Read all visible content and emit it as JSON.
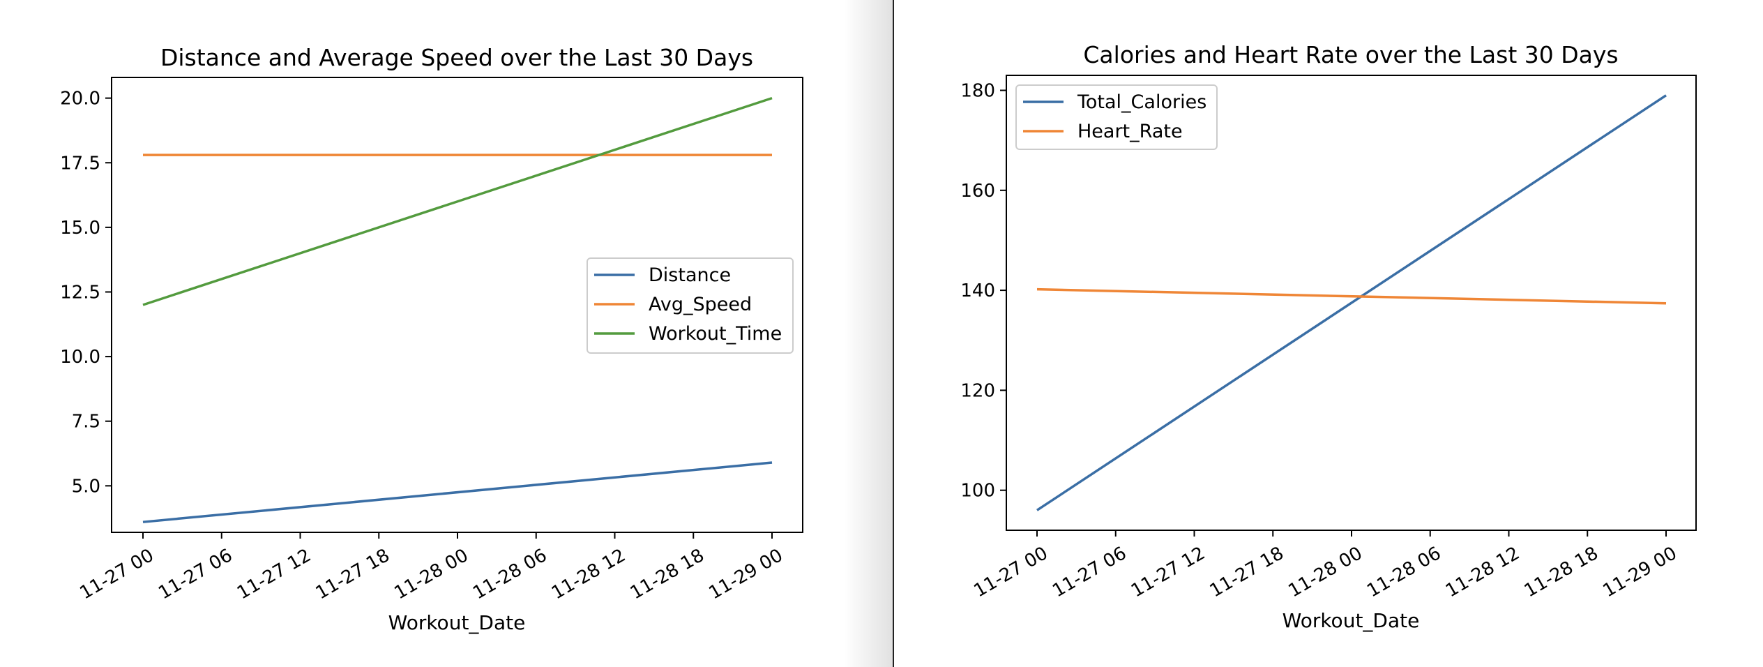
{
  "chart_data": [
    {
      "type": "line",
      "title": "Distance and Average Speed over the Last 30 Days",
      "xlabel": "Workout_Date",
      "ylabel": "",
      "x": [
        "11-27 00",
        "11-29 00"
      ],
      "xticks": [
        "11-27 00",
        "11-27 06",
        "11-27 12",
        "11-27 18",
        "11-28 00",
        "11-28 06",
        "11-28 12",
        "11-28 18",
        "11-29 00"
      ],
      "yticks": [
        "5.0",
        "7.5",
        "10.0",
        "12.5",
        "15.0",
        "17.5",
        "20.0"
      ],
      "ylim": [
        3.2,
        20.8
      ],
      "grid": false,
      "legend": "center-right",
      "series": [
        {
          "name": "Distance",
          "color": "#3a6ea5",
          "values": [
            3.6,
            5.9
          ]
        },
        {
          "name": "Avg_Speed",
          "color": "#ef8636",
          "values": [
            17.8,
            17.8
          ]
        },
        {
          "name": "Workout_Time",
          "color": "#539b3e",
          "values": [
            12.0,
            20.0
          ]
        }
      ]
    },
    {
      "type": "line",
      "title": "Calories and Heart Rate over the Last 30 Days",
      "xlabel": "Workout_Date",
      "ylabel": "",
      "x": [
        "11-27 00",
        "11-29 00"
      ],
      "xticks": [
        "11-27 00",
        "11-27 06",
        "11-27 12",
        "11-27 18",
        "11-28 00",
        "11-28 06",
        "11-28 12",
        "11-28 18",
        "11-29 00"
      ],
      "yticks": [
        "100",
        "120",
        "140",
        "160",
        "180"
      ],
      "ylim": [
        92,
        183
      ],
      "grid": false,
      "legend": "top-left",
      "series": [
        {
          "name": "Total_Calories",
          "color": "#3a6ea5",
          "values": [
            96,
            179
          ]
        },
        {
          "name": "Heart_Rate",
          "color": "#ef8636",
          "values": [
            140.2,
            137.4
          ]
        }
      ]
    }
  ]
}
